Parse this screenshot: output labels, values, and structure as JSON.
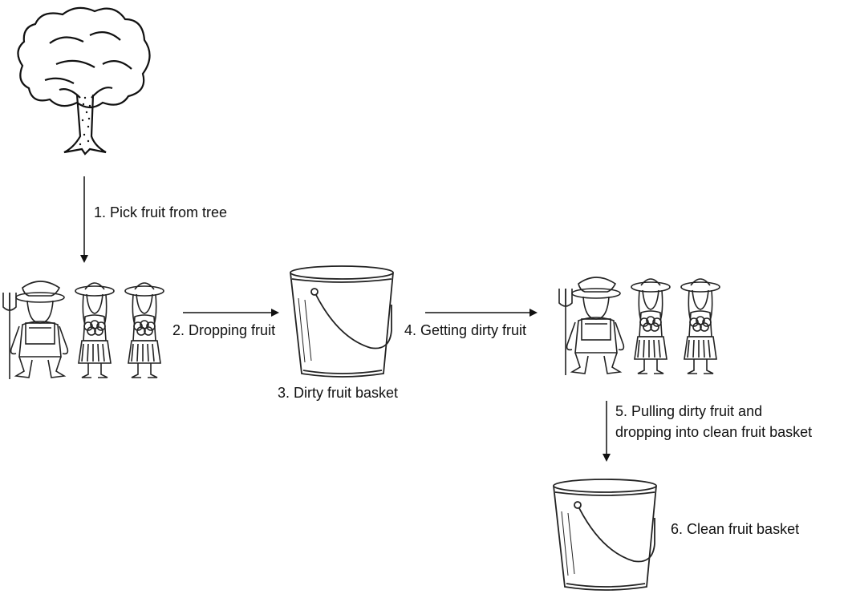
{
  "steps": {
    "pick": "1. Pick fruit from tree",
    "drop": "2. Dropping fruit",
    "dirty_basket": "3. Dirty fruit basket",
    "get_dirty": "4. Getting dirty fruit",
    "pull_line1": "5. Pulling dirty fruit and",
    "pull_line2": "dropping into clean fruit basket",
    "clean_basket": "6. Clean fruit basket"
  },
  "icons": [
    "tree-icon",
    "farmers-group-icon",
    "bucket-icon",
    "arrow-icon"
  ]
}
